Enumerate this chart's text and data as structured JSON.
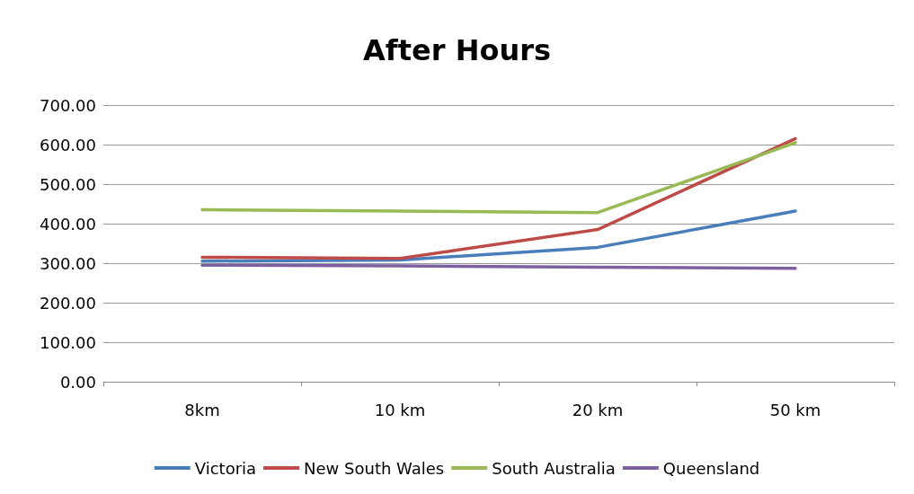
{
  "chart_data": {
    "type": "line",
    "title": "After Hours",
    "categories": [
      "8km",
      "10 km",
      "20 km",
      "50 km"
    ],
    "series": [
      {
        "name": "Victoria",
        "color": "#4a7ebb",
        "values": [
          305,
          308,
          340,
          432
        ]
      },
      {
        "name": "New South Wales",
        "color": "#be4b48",
        "values": [
          315,
          312,
          385,
          615
        ]
      },
      {
        "name": "South Australia",
        "color": "#98b954",
        "values": [
          435,
          432,
          428,
          605
        ]
      },
      {
        "name": "Queensland",
        "color": "#7d60a0",
        "values": [
          295,
          293,
          290,
          287
        ]
      }
    ],
    "ylim": [
      0,
      700
    ],
    "yticks": [
      {
        "value": 0,
        "label": "0.00"
      },
      {
        "value": 100,
        "label": "100.00"
      },
      {
        "value": 200,
        "label": "200.00"
      },
      {
        "value": 300,
        "label": "300.00"
      },
      {
        "value": 400,
        "label": "400.00"
      },
      {
        "value": 500,
        "label": "500.00"
      },
      {
        "value": 600,
        "label": "600.00"
      },
      {
        "value": 700,
        "label": "700.00"
      }
    ],
    "grid": "y",
    "legend": "bottom",
    "marker": "none",
    "line_style": "solid"
  }
}
